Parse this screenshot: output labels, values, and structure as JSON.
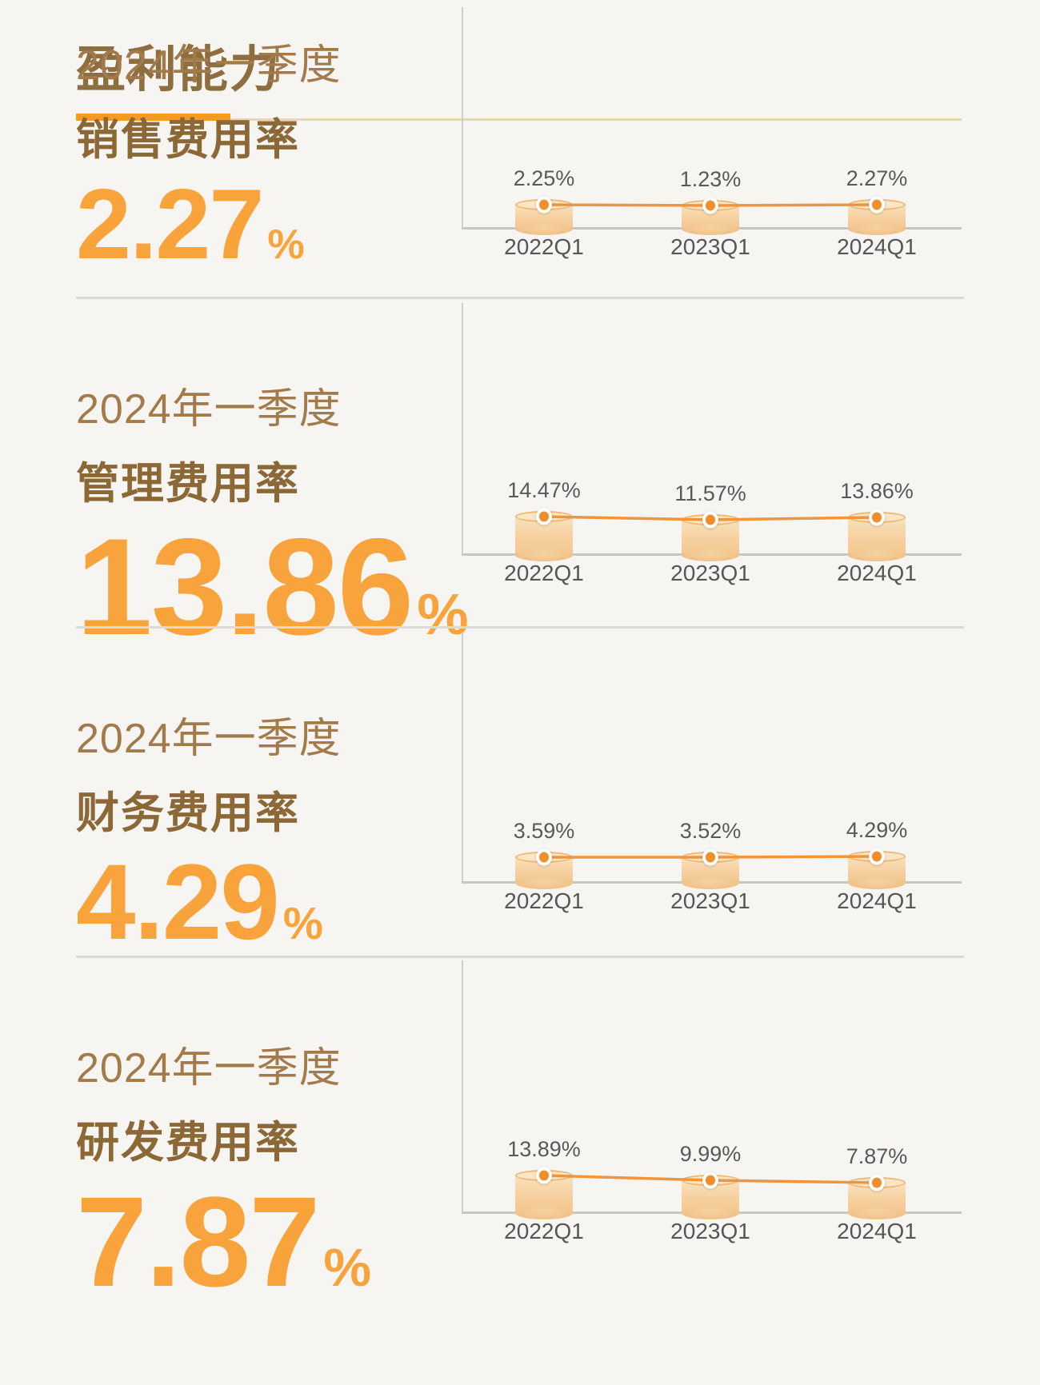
{
  "header": {
    "title": "盈利能力"
  },
  "sections": [
    {
      "period": "2024年一季度",
      "metric": "销售费用率",
      "value": "2.27",
      "unit": "%"
    },
    {
      "period": "2024年一季度",
      "metric": "管理费用率",
      "value": "13.86",
      "unit": "%"
    },
    {
      "period": "2024年一季度",
      "metric": "财务费用率",
      "value": "4.29",
      "unit": "%"
    },
    {
      "period": "2024年一季度",
      "metric": "研发费用率",
      "value": "7.87",
      "unit": "%"
    }
  ],
  "chart_data": [
    {
      "type": "line",
      "title": "销售费用率",
      "categories": [
        "2022Q1",
        "2023Q1",
        "2024Q1"
      ],
      "values": [
        2.25,
        1.23,
        2.27
      ],
      "value_labels": [
        "2.25%",
        "1.23%",
        "2.27%"
      ],
      "unit": "%",
      "legend": false,
      "grid": false
    },
    {
      "type": "line",
      "title": "管理费用率",
      "categories": [
        "2022Q1",
        "2023Q1",
        "2024Q1"
      ],
      "values": [
        14.47,
        11.57,
        13.86
      ],
      "value_labels": [
        "14.47%",
        "11.57%",
        "13.86%"
      ],
      "unit": "%",
      "legend": false,
      "grid": false
    },
    {
      "type": "line",
      "title": "财务费用率",
      "categories": [
        "2022Q1",
        "2023Q1",
        "2024Q1"
      ],
      "values": [
        3.59,
        3.52,
        4.29
      ],
      "value_labels": [
        "3.59%",
        "3.52%",
        "4.29%"
      ],
      "unit": "%",
      "legend": false,
      "grid": false
    },
    {
      "type": "line",
      "title": "研发费用率",
      "categories": [
        "2022Q1",
        "2023Q1",
        "2024Q1"
      ],
      "values": [
        13.89,
        9.99,
        7.87
      ],
      "value_labels": [
        "13.89%",
        "9.99%",
        "7.87%"
      ],
      "unit": "%",
      "legend": false,
      "grid": false
    }
  ],
  "colors": {
    "background": "#f7f5f2",
    "accent_orange": "#f59a23",
    "big_number": "#f8a33c",
    "title_brown": "#8d6e3f",
    "period_brown": "#a37a4a",
    "metric_brown": "#8c6836",
    "label_gray": "#58595b",
    "trend_line": "#f0953c",
    "dot_orange": "#ee8f2b",
    "divider_gray": "#dadada",
    "rule_beige": "#e6d6b8"
  }
}
